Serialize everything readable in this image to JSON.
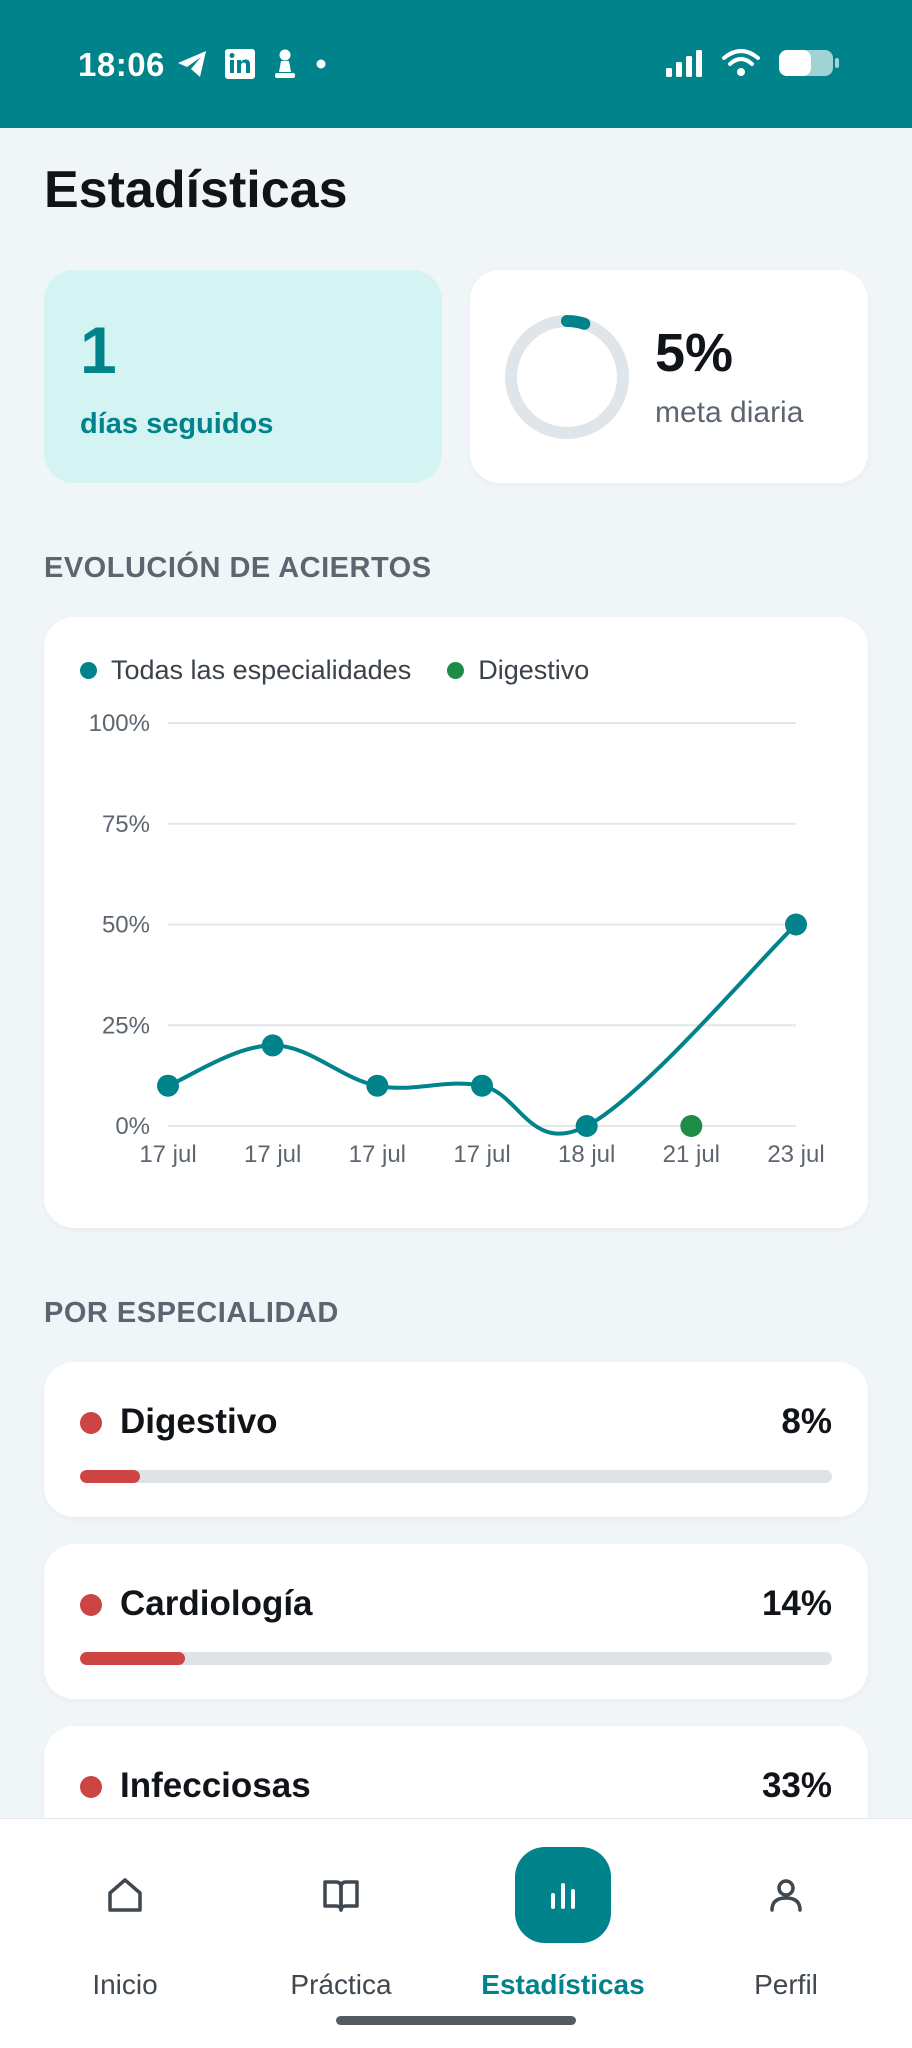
{
  "status_bar": {
    "time": "18:06",
    "left_icons": [
      "telegram-icon",
      "linkedin-icon",
      "chess-pawn-icon",
      "notification-dot-icon"
    ],
    "right_icons": [
      "signal-icon",
      "wifi-icon",
      "battery-icon"
    ]
  },
  "page": {
    "title": "Estadísticas"
  },
  "streak": {
    "value": "1",
    "label": "días seguidos"
  },
  "daily_goal": {
    "percent": "5%",
    "progress": 0.05,
    "label": "meta diaria"
  },
  "evolution": {
    "section_label": "EVOLUCIÓN DE ACIERTOS"
  },
  "chart_data": {
    "type": "line",
    "legend_position": "top-left",
    "grid": true,
    "x": [
      "17 jul",
      "17 jul",
      "17 jul",
      "17 jul",
      "18 jul",
      "21 jul",
      "23 jul"
    ],
    "y_ticks": [
      "100%",
      "75%",
      "50%",
      "25%",
      "0%"
    ],
    "ylim": [
      0,
      100
    ],
    "series": [
      {
        "name": "Todas las especialidades",
        "color": "#00838a",
        "values": [
          10,
          20,
          10,
          10,
          0,
          null,
          50
        ]
      },
      {
        "name": "Digestivo",
        "color": "#1e8c45",
        "values": [
          null,
          null,
          null,
          null,
          null,
          0,
          null
        ]
      }
    ]
  },
  "specialties": {
    "section_label": "POR ESPECIALIDAD",
    "items": [
      {
        "name": "Digestivo",
        "percent": "8%",
        "value": 8
      },
      {
        "name": "Cardiología",
        "percent": "14%",
        "value": 14
      },
      {
        "name": "Infecciosas",
        "percent": "33%",
        "value": 33
      }
    ],
    "color": "#cc4444"
  },
  "nav": {
    "items": [
      {
        "label": "Inicio",
        "icon": "home-icon"
      },
      {
        "label": "Práctica",
        "icon": "book-icon"
      },
      {
        "label": "Estadísticas",
        "icon": "bar-chart-icon",
        "active": true
      },
      {
        "label": "Perfil",
        "icon": "user-icon"
      }
    ]
  },
  "colors": {
    "accent": "#00838a",
    "danger": "#cc4444",
    "success": "#1e8c45"
  }
}
